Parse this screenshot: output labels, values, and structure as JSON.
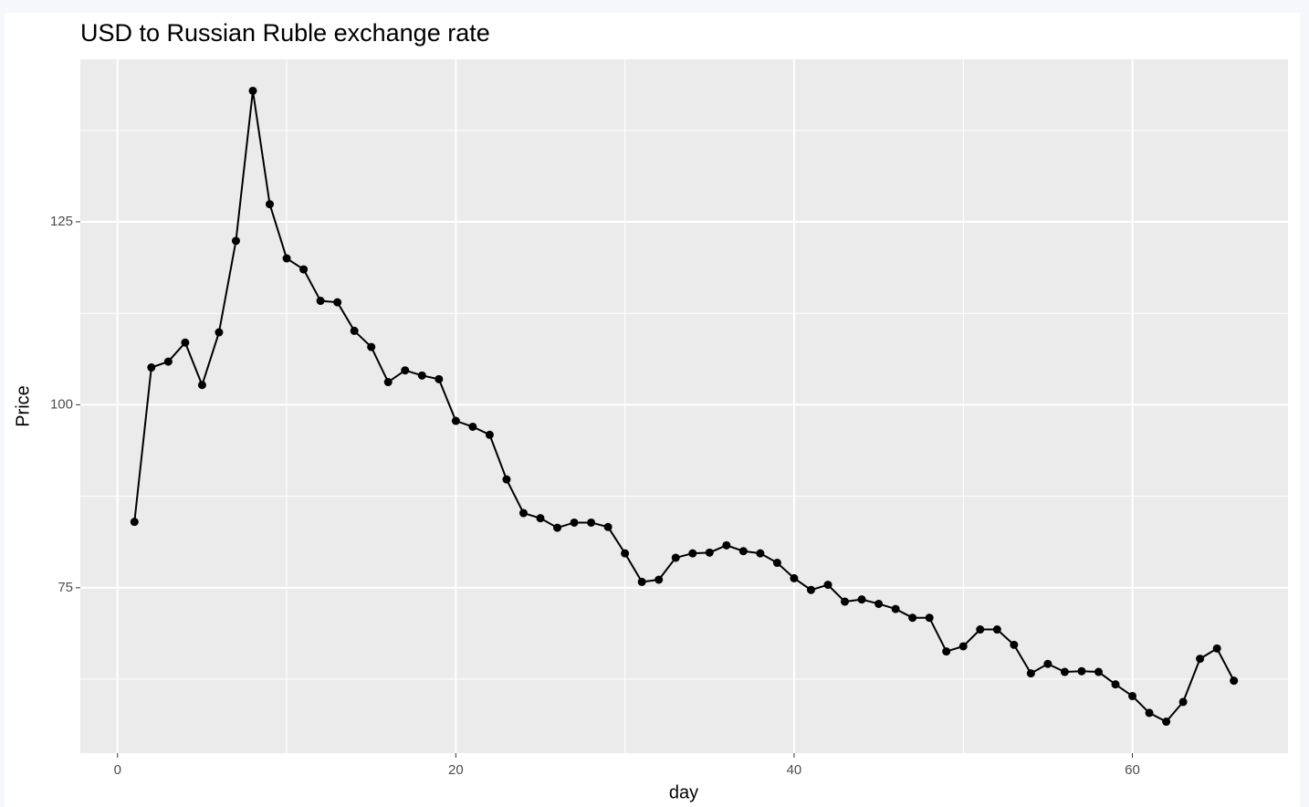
{
  "chart_data": {
    "type": "line",
    "title": "USD to Russian Ruble exchange rate",
    "x_label": "day",
    "y_label": "Price",
    "x": [
      1,
      2,
      3,
      4,
      5,
      6,
      7,
      8,
      9,
      10,
      11,
      12,
      13,
      14,
      15,
      16,
      17,
      18,
      19,
      20,
      21,
      22,
      23,
      24,
      25,
      26,
      27,
      28,
      29,
      30,
      31,
      32,
      33,
      34,
      35,
      36,
      37,
      38,
      39,
      40,
      41,
      42,
      43,
      44,
      45,
      46,
      47,
      48,
      49,
      50,
      51,
      52,
      53,
      54,
      55,
      56,
      57,
      58,
      59,
      60,
      61,
      62,
      63,
      64,
      65,
      66
    ],
    "values": [
      84.0,
      105.1,
      105.9,
      108.5,
      102.7,
      109.9,
      122.4,
      142.9,
      127.4,
      120.0,
      118.5,
      114.2,
      114.0,
      110.1,
      107.9,
      103.1,
      104.7,
      104.0,
      103.5,
      97.8,
      97.0,
      95.9,
      89.8,
      85.2,
      84.5,
      83.2,
      83.9,
      83.9,
      83.3,
      79.7,
      75.8,
      76.1,
      79.1,
      79.7,
      79.8,
      80.8,
      80.0,
      79.7,
      78.4,
      76.3,
      74.7,
      75.4,
      73.1,
      73.4,
      72.8,
      72.1,
      70.9,
      70.9,
      66.3,
      67.0,
      69.3,
      69.3,
      67.2,
      63.3,
      64.6,
      63.5,
      63.6,
      63.5,
      61.8,
      60.2,
      57.9,
      56.7,
      59.4,
      65.3,
      66.7,
      62.3
    ],
    "color": "#000000",
    "xlim": [
      -2.2,
      69.2
    ],
    "xticks": [
      0,
      20,
      40,
      60
    ],
    "ylim": [
      52.4,
      147.2
    ],
    "yticks": [
      75,
      100,
      125
    ],
    "grid": true
  }
}
